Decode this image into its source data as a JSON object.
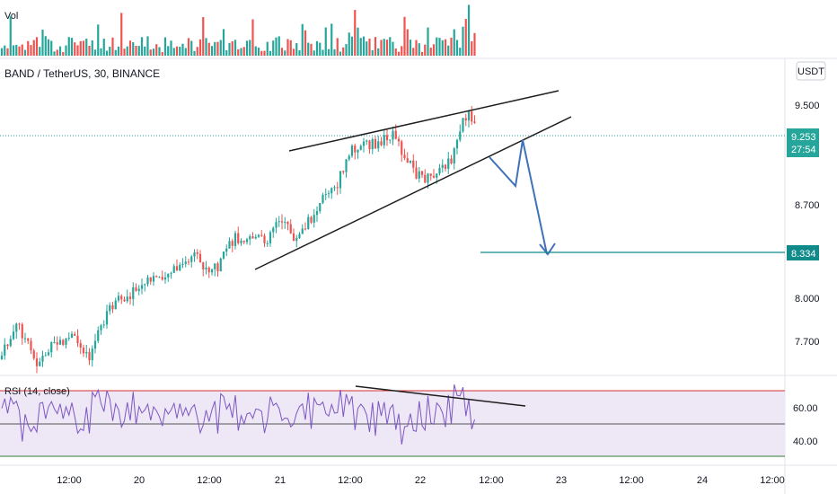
{
  "header": {
    "vol_label": "Vol",
    "symbol": "BAND / TetherUS, 30, BINANCE",
    "currency_badge": "USDT"
  },
  "colors": {
    "up": "#26a69a",
    "down": "#ef5350",
    "vol_up": "#26a69a",
    "vol_down": "#ef5350",
    "price_line": "#26a69a",
    "target_line": "#118a8a",
    "arrow": "#3f72b8",
    "trendline": "#1e1e1e",
    "rsi_line": "#7e57c2",
    "rsi_band": "#ede7f6",
    "rsi_upper": "#d32f2f",
    "rsi_lower": "#1e1e1e",
    "rsi_bottom": "#2e7d32"
  },
  "price_axis": {
    "ticks": [
      "9.500",
      "8.700",
      "8.000",
      "7.700"
    ],
    "current_price": "9.253",
    "countdown": "27:54",
    "target_price": "8.334"
  },
  "rsi": {
    "label": "RSI (14, close)",
    "ticks": [
      "60.00",
      "40.00"
    ]
  },
  "time_axis": {
    "ticks": [
      "12:00",
      "20",
      "12:00",
      "21",
      "12:00",
      "22",
      "12:00",
      "23",
      "12:00",
      "24",
      "12:00"
    ]
  },
  "chart_data": {
    "type": "candlestick",
    "symbol": "BAND / TetherUS",
    "interval": "30",
    "exchange": "BINANCE",
    "price_ticks": [
      9.5,
      8.7,
      8.0,
      7.7
    ],
    "current_price": 9.253,
    "target_price": 8.334,
    "rsi_ticks": [
      60,
      40
    ],
    "annotations": [
      "rising wedge upper trendline",
      "rising wedge lower trendline",
      "projected breakdown path",
      "target level 8.334",
      "RSI bearish divergence line"
    ]
  }
}
